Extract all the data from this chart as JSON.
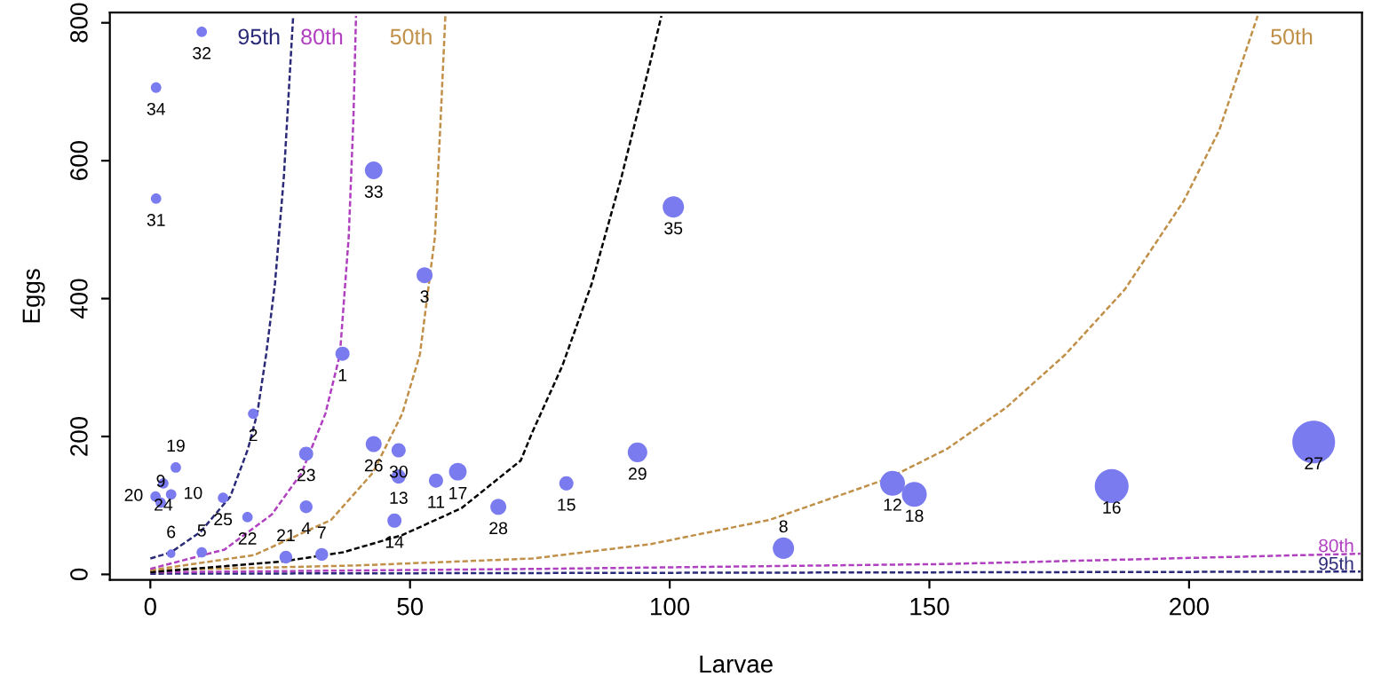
{
  "chart_data": {
    "type": "bubble",
    "xlabel": "Larvae",
    "ylabel": "Eggs",
    "xlim": [
      -7.8,
      233.3
    ],
    "ylim": [
      -8,
      815
    ],
    "xticks": [
      0,
      50,
      100,
      150,
      200
    ],
    "yticks": [
      0,
      200,
      400,
      600,
      800
    ],
    "grid": false,
    "legend": false,
    "series": [
      {
        "type": "line",
        "name": "95th",
        "color": "#2a2a78",
        "line_style": "dashed",
        "x": [
          0,
          4.0,
          9.7,
          15.4,
          18.8,
          20.6,
          22.3,
          24.0,
          25.7,
          27.5
        ],
        "values": [
          23,
          32,
          62,
          113,
          182,
          234,
          319,
          422,
          576,
          810
        ]
      },
      {
        "type": "line",
        "name": "80th",
        "color": "#b040c0",
        "line_style": "dashed",
        "x": [
          0,
          14.3,
          23.4,
          29.1,
          33.7,
          36.5,
          38.2,
          39.1,
          39.6
        ],
        "values": [
          8,
          36,
          87,
          147,
          233,
          319,
          490,
          661,
          810
        ]
      },
      {
        "type": "line",
        "name": "50th",
        "color": "#c09048",
        "line_style": "dashed",
        "x": [
          0,
          20,
          34.8,
          42.8,
          48.5,
          51.9,
          54.8,
          55.9,
          56.8
        ],
        "values": [
          6,
          28,
          79,
          147,
          233,
          319,
          490,
          661,
          810
        ]
      },
      {
        "type": "line",
        "color": "#000000",
        "line_style": "dashed",
        "x": [
          0,
          25.7,
          37.1,
          48.5,
          59.9,
          71.3,
          73.6,
          79.3,
          85.0,
          90.7,
          96.4,
          98.4
        ],
        "values": [
          3,
          19,
          32,
          57,
          96,
          165,
          207,
          302,
          422,
          576,
          747,
          810
        ]
      },
      {
        "type": "line",
        "name": "50th",
        "color": "#c09048",
        "line_style": "dashed",
        "x": [
          0,
          40,
          73.6,
          96.4,
          119.2,
          142.0,
          153.4,
          164.8,
          176.2,
          187.6,
          199.0,
          205.8,
          213.2
        ],
        "values": [
          6,
          13,
          23,
          44,
          79,
          139,
          182,
          242,
          319,
          413,
          542,
          644,
          810
        ]
      },
      {
        "type": "line",
        "name": "80th",
        "color": "#b040c0",
        "line_style": "dashed",
        "x": [
          0,
          75,
          153,
          233
        ],
        "values": [
          3,
          8,
          15,
          30
        ]
      },
      {
        "type": "line",
        "name": "95th",
        "color": "#2a2a78",
        "line_style": "dashed",
        "x": [
          0,
          233
        ],
        "values": [
          1,
          4
        ]
      },
      {
        "color": "#7b7bf0",
        "marker": "circle",
        "x": [
          37.0,
          19.8,
          52.8,
          30.0,
          9.9,
          4.0,
          33.0,
          121.9,
          2.0,
          4.0,
          55.0,
          142.9,
          47.8,
          47.0,
          80.1,
          185.1,
          59.2,
          147.1,
          4.9,
          1.0,
          26.1,
          18.7,
          30.0,
          2.5,
          14.0,
          43.0,
          224.0,
          67.0,
          93.8,
          47.8,
          1.1,
          9.9,
          43.0,
          1.1,
          100.7
        ],
        "values": [
          320,
          233,
          434,
          98,
          32,
          30,
          29,
          38,
          104,
          116,
          136,
          132,
          142,
          78,
          132,
          128,
          149,
          116,
          155,
          113,
          25,
          83,
          175,
          132,
          111,
          189,
          192,
          98,
          177,
          180,
          545,
          787,
          586,
          706,
          533
        ],
        "sizes": [
          0.11,
          0.06,
          0.14,
          0.09,
          0.06,
          0.04,
          0.09,
          0.25,
          0.06,
          0.06,
          0.11,
          0.34,
          0.11,
          0.11,
          0.11,
          0.63,
          0.17,
          0.34,
          0.06,
          0.06,
          0.09,
          0.06,
          0.11,
          0.06,
          0.06,
          0.14,
          1,
          0.14,
          0.21,
          0.11,
          0.06,
          0.06,
          0.17,
          0.06,
          0.25
        ]
      }
    ],
    "annotations": [
      {
        "text": "1",
        "x": 37.0,
        "y": 320
      },
      {
        "text": "2",
        "x": 19.8,
        "y": 233
      },
      {
        "text": "3",
        "x": 52.8,
        "y": 434
      },
      {
        "text": "4",
        "x": 30.0,
        "y": 98
      },
      {
        "text": "5",
        "x": 9.9,
        "y": 32
      },
      {
        "text": "6",
        "x": 4.0,
        "y": 30
      },
      {
        "text": "7",
        "x": 33.0,
        "y": 29
      },
      {
        "text": "8",
        "x": 121.9,
        "y": 38
      },
      {
        "text": "9",
        "x": 2.0,
        "y": 104
      },
      {
        "text": "10",
        "x": 4.0,
        "y": 116
      },
      {
        "text": "11",
        "x": 55.0,
        "y": 136
      },
      {
        "text": "12",
        "x": 142.9,
        "y": 132
      },
      {
        "text": "13",
        "x": 47.8,
        "y": 142
      },
      {
        "text": "14",
        "x": 47.0,
        "y": 78
      },
      {
        "text": "15",
        "x": 80.1,
        "y": 132
      },
      {
        "text": "16",
        "x": 185.1,
        "y": 128
      },
      {
        "text": "17",
        "x": 59.2,
        "y": 149
      },
      {
        "text": "18",
        "x": 147.1,
        "y": 116
      },
      {
        "text": "19",
        "x": 4.9,
        "y": 155
      },
      {
        "text": "20",
        "x": 1.0,
        "y": 113
      },
      {
        "text": "21",
        "x": 26.1,
        "y": 25
      },
      {
        "text": "22",
        "x": 18.7,
        "y": 83
      },
      {
        "text": "23",
        "x": 30.0,
        "y": 175
      },
      {
        "text": "24",
        "x": 2.5,
        "y": 132
      },
      {
        "text": "25",
        "x": 14.0,
        "y": 111
      },
      {
        "text": "26",
        "x": 43.0,
        "y": 189
      },
      {
        "text": "27",
        "x": 224.0,
        "y": 192
      },
      {
        "text": "28",
        "x": 67.0,
        "y": 98
      },
      {
        "text": "29",
        "x": 93.8,
        "y": 177
      },
      {
        "text": "30",
        "x": 47.8,
        "y": 180
      },
      {
        "text": "31",
        "x": 1.1,
        "y": 545
      },
      {
        "text": "32",
        "x": 9.9,
        "y": 787
      },
      {
        "text": "33",
        "x": 43.0,
        "y": 586
      },
      {
        "text": "34",
        "x": 1.1,
        "y": 706
      },
      {
        "text": "35",
        "x": 100.7,
        "y": 533
      }
    ]
  }
}
